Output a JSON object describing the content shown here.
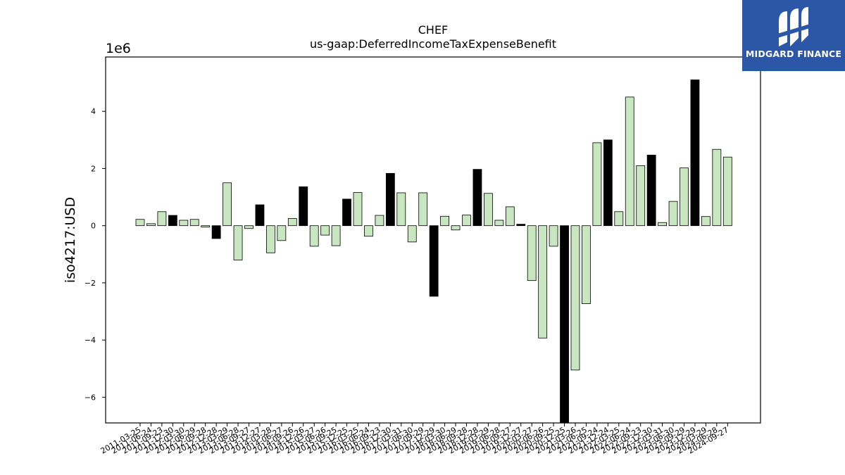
{
  "colors": {
    "positive_fill": "#c8e6c0",
    "highlight_fill": "#000000",
    "bar_edge": "#000000",
    "logo_bg": "#2b57a6"
  },
  "brand": {
    "name": "MIDGARD FINANCE",
    "icon": "midgard-logo-icon"
  },
  "chart_data": {
    "type": "bar",
    "title": "CHEF",
    "subtitle": "us-gaap:DeferredIncomeTaxExpenseBenefit",
    "ylabel": "iso4217:USD",
    "y_multiplier_label": "1e6",
    "ylim": [
      -6.9,
      5.9
    ],
    "yticks": [
      -6,
      -4,
      -2,
      0,
      2,
      4
    ],
    "ytick_labels": [
      "−6",
      "−4",
      "−2",
      "0",
      "2",
      "4"
    ],
    "grid": false,
    "categories": [
      "2011-03-25",
      "2011-06-24",
      "2011-09-23",
      "2011-12-30",
      "2012-03-30",
      "2012-06-29",
      "2012-09-28",
      "2012-12-28",
      "2013-03-29",
      "2013-06-28",
      "2013-09-27",
      "2013-12-27",
      "2014-03-28",
      "2014-06-27",
      "2014-09-26",
      "2014-12-26",
      "2015-03-27",
      "2015-06-26",
      "2015-09-25",
      "2015-12-25",
      "2016-03-25",
      "2016-06-24",
      "2016-09-23",
      "2016-12-30",
      "2017-03-31",
      "2017-06-30",
      "2017-09-29",
      "2017-12-29",
      "2018-03-30",
      "2018-06-29",
      "2018-09-28",
      "2018-12-28",
      "2019-03-29",
      "2019-06-28",
      "2019-09-27",
      "2019-12-27",
      "2020-03-27",
      "2020-06-26",
      "2020-09-25",
      "2020-12-25",
      "2021-03-26",
      "2021-06-25",
      "2021-09-24",
      "2021-12-24",
      "2022-03-25",
      "2022-06-24",
      "2022-09-23",
      "2022-12-30",
      "2023-03-31",
      "2023-06-30",
      "2023-09-29",
      "2023-12-29",
      "2024-03-29",
      "2024-06-28",
      "2024-09-27"
    ],
    "values": [
      0.22,
      0.07,
      0.49,
      0.36,
      0.19,
      0.22,
      -0.05,
      -0.45,
      1.5,
      -1.2,
      -0.1,
      0.73,
      -0.95,
      -0.52,
      0.25,
      1.36,
      -0.72,
      -0.33,
      -0.7,
      0.93,
      1.16,
      -0.37,
      0.36,
      1.83,
      1.15,
      -0.57,
      1.15,
      -2.47,
      0.33,
      -0.15,
      0.37,
      1.97,
      1.13,
      0.19,
      0.66,
      0.05,
      -1.92,
      -3.93,
      -0.72,
      -6.9,
      -5.05,
      -2.73,
      2.9,
      3.0,
      0.49,
      4.5,
      2.1,
      2.47,
      0.11,
      0.85,
      2.02,
      5.1,
      0.32,
      2.67,
      2.4
    ],
    "highlight": [
      false,
      false,
      false,
      true,
      false,
      false,
      false,
      true,
      false,
      false,
      false,
      true,
      false,
      false,
      false,
      true,
      false,
      false,
      false,
      true,
      false,
      false,
      false,
      true,
      false,
      false,
      false,
      true,
      false,
      false,
      false,
      true,
      false,
      false,
      false,
      true,
      false,
      false,
      false,
      true,
      false,
      false,
      false,
      true,
      false,
      false,
      false,
      true,
      false,
      false,
      false,
      true,
      false,
      false,
      false
    ]
  }
}
